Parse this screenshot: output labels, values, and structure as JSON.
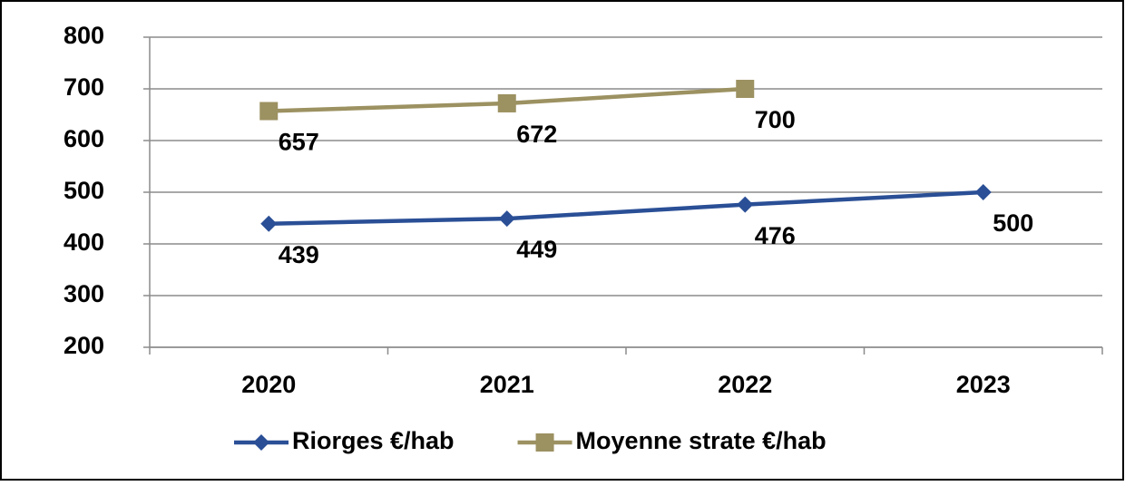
{
  "chart_data": {
    "type": "line",
    "categories": [
      "2020",
      "2021",
      "2022",
      "2023"
    ],
    "series": [
      {
        "name": "Riorges €/hab",
        "color": "#2a4f96",
        "marker": "diamond",
        "values": [
          439,
          449,
          476,
          500
        ]
      },
      {
        "name": "Moyenne strate €/hab",
        "color": "#9c9161",
        "marker": "square",
        "values": [
          657,
          672,
          700,
          null
        ]
      }
    ],
    "ylim": [
      200,
      800
    ],
    "yticks": [
      200,
      300,
      400,
      500,
      600,
      700,
      800
    ],
    "grid": true,
    "legend": "bottom"
  }
}
